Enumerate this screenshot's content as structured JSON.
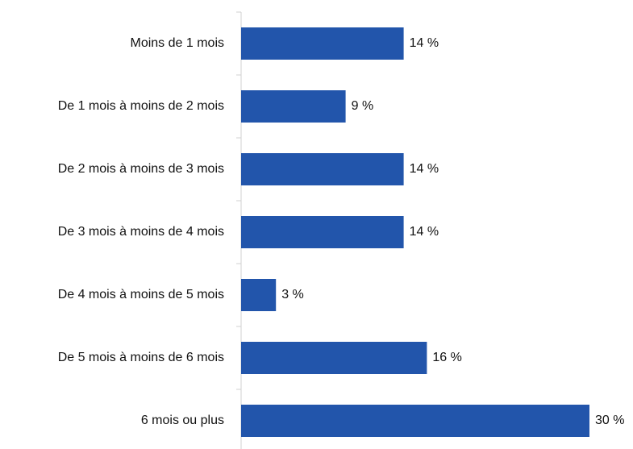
{
  "chart_data": {
    "type": "hbar",
    "categories": [
      "Moins de 1 mois",
      "De 1 mois à moins de 2 mois",
      "De 2 mois à moins de 3 mois",
      "De 3 mois à moins de 4 mois",
      "De 4 mois à moins de 5 mois",
      "De 5 mois à moins de 6 mois",
      "6 mois ou plus"
    ],
    "values": [
      14,
      9,
      14,
      14,
      3,
      16,
      30
    ],
    "value_labels": [
      "14 %",
      "9 %",
      "14 %",
      "14 %",
      "3 %",
      "16 %",
      "30 %"
    ],
    "color": "#2255ab"
  }
}
